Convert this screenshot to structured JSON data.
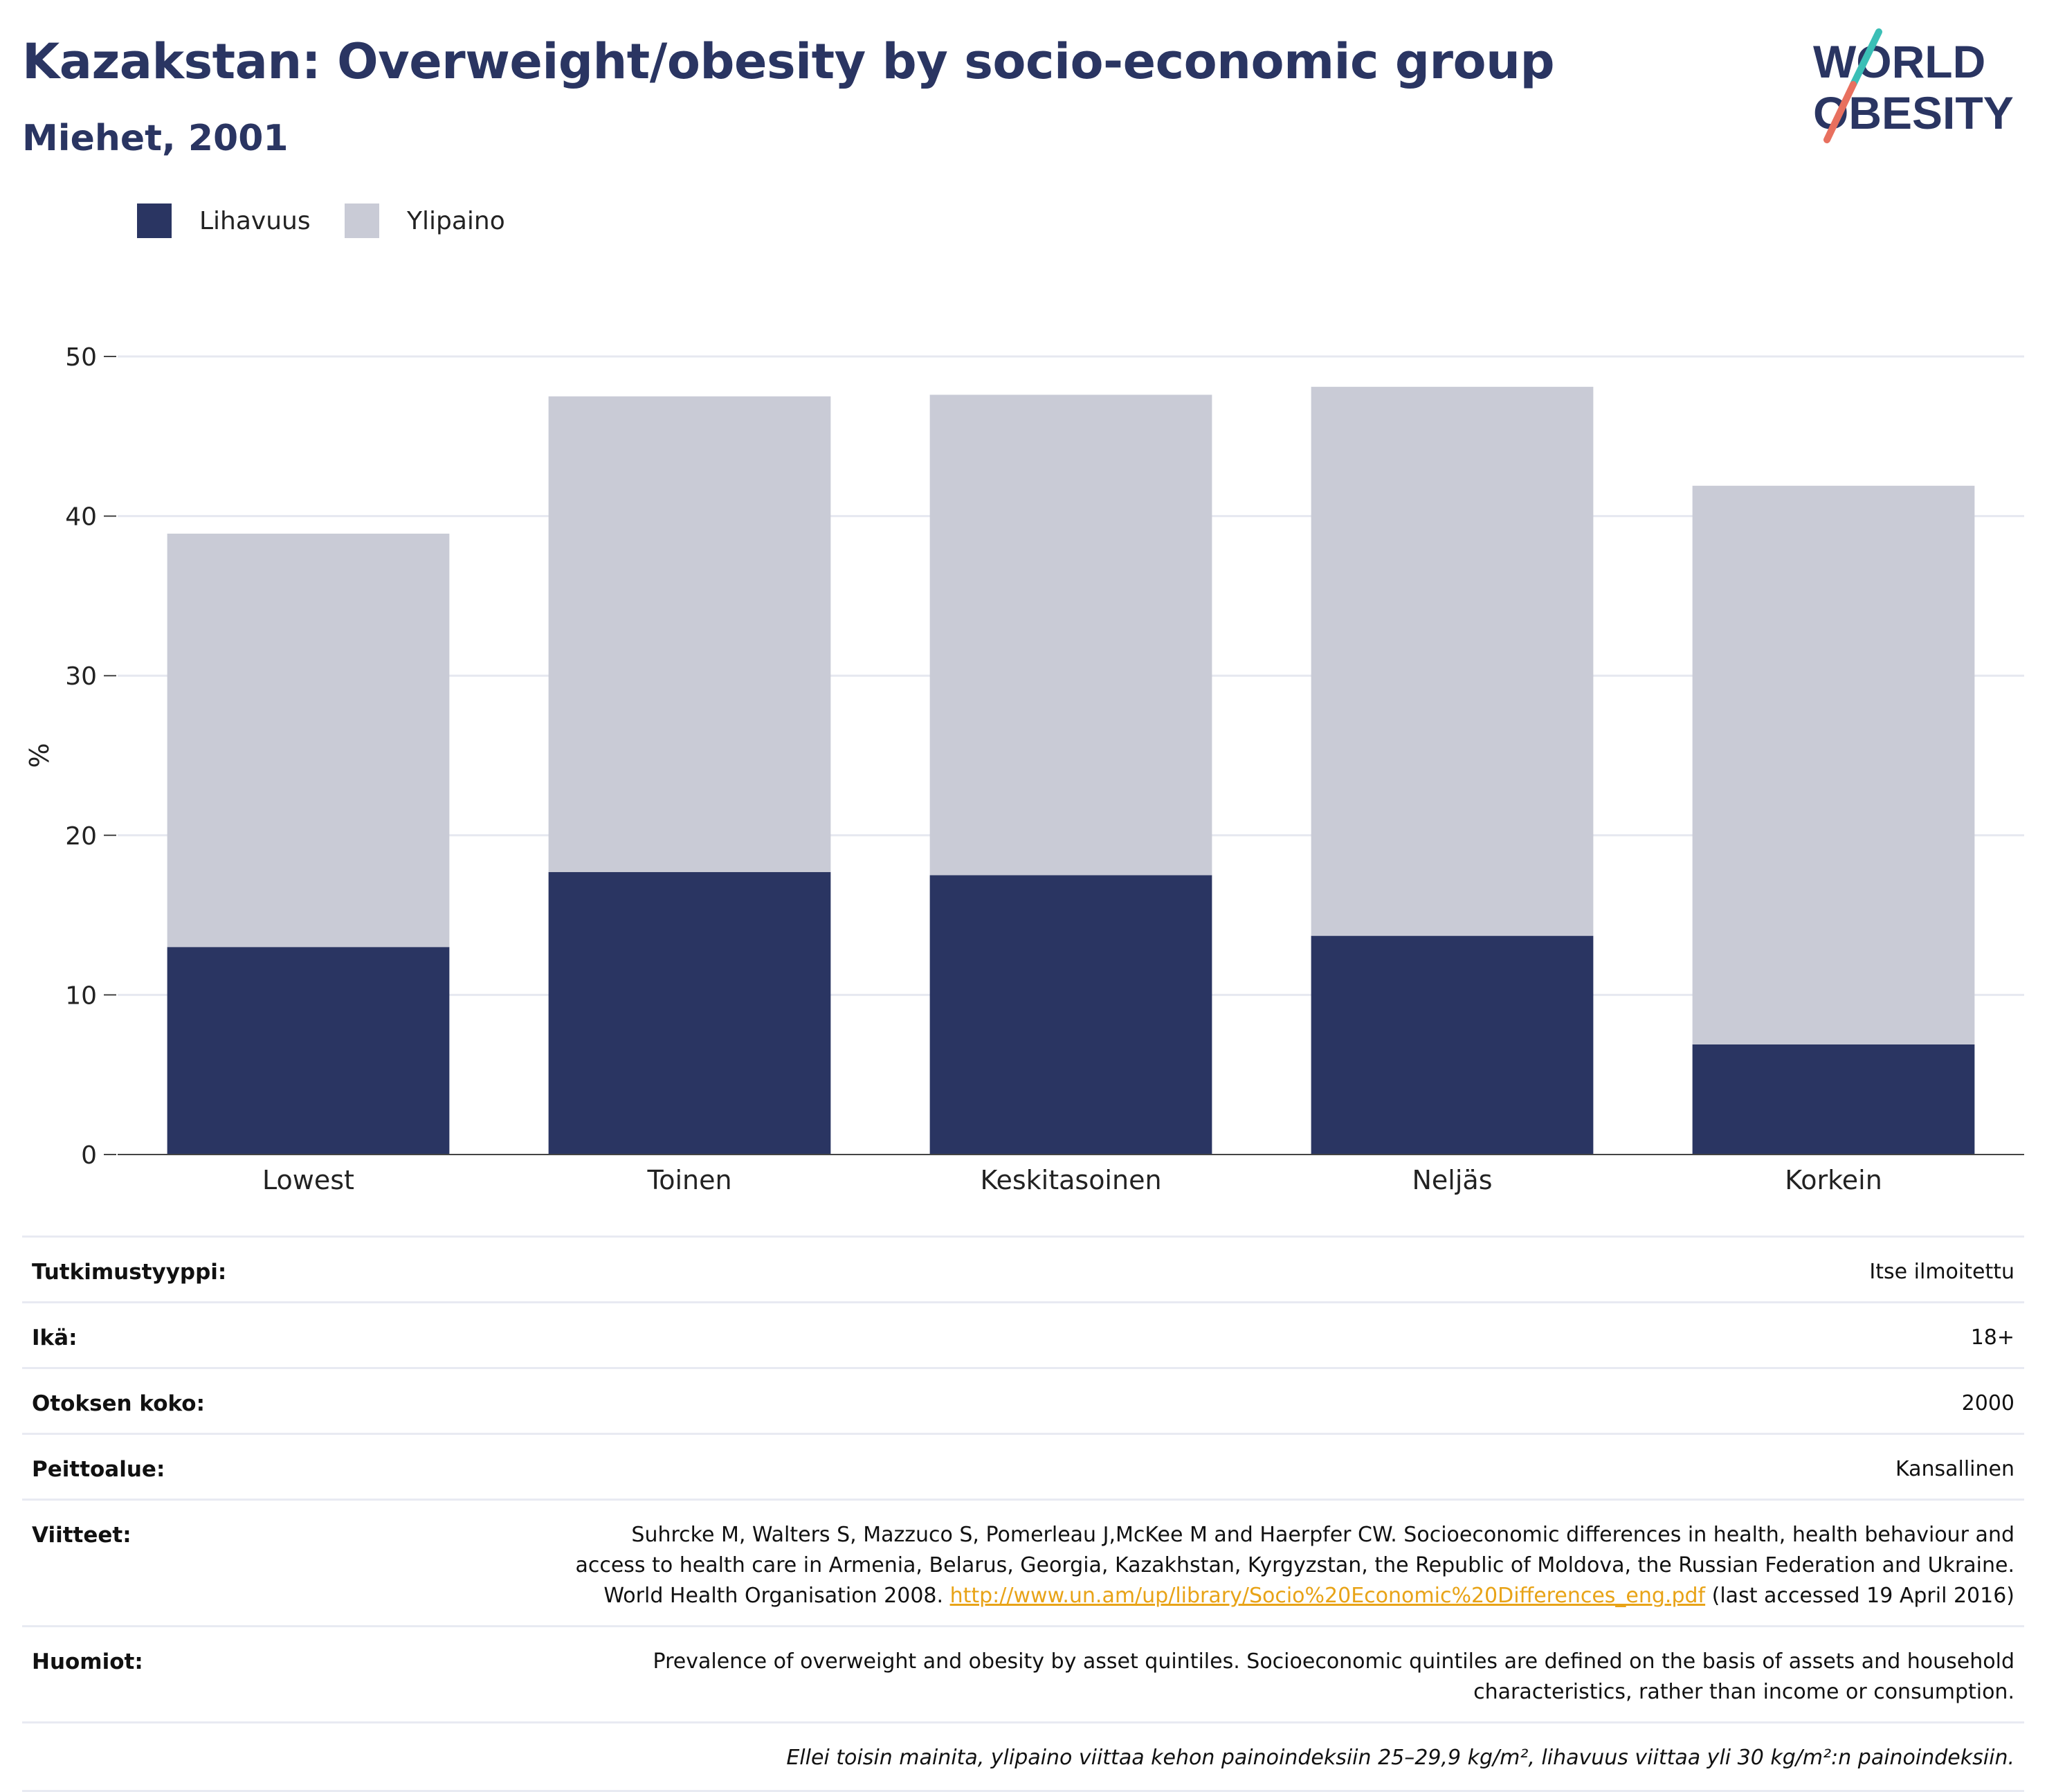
{
  "header": {
    "title": "Kazakstan: Overweight/obesity by socio-economic group",
    "subtitle": "Miehet, 2001"
  },
  "logo": {
    "line1": "WORLD",
    "line2": "OBESITY",
    "text_color": "#2a3562",
    "stripe_colors": [
      "#3bbfb6",
      "#e8705f"
    ]
  },
  "legend": [
    {
      "label": "Lihavuus",
      "color": "#2a3562"
    },
    {
      "label": "Ylipaino",
      "color": "#c9cbd6"
    }
  ],
  "chart_data": {
    "type": "bar",
    "stacked": true,
    "categories": [
      "Lowest",
      "Toinen",
      "Keskitasoinen",
      "Neljäs",
      "Korkein"
    ],
    "series": [
      {
        "name": "Lihavuus",
        "color": "#2a3562",
        "values": [
          13.0,
          17.7,
          17.5,
          13.7,
          6.9
        ]
      },
      {
        "name": "Ylipaino",
        "color": "#c9cbd6",
        "values": [
          25.9,
          29.8,
          30.1,
          34.4,
          35.0
        ]
      }
    ],
    "ylabel": "%",
    "ylim": [
      0,
      50
    ],
    "yticks": [
      0,
      10,
      20,
      30,
      40,
      50
    ],
    "grid": true
  },
  "meta": {
    "rows": [
      {
        "key": "Tutkimustyyppi:",
        "value": "Itse ilmoitettu"
      },
      {
        "key": "Ikä:",
        "value": "18+"
      },
      {
        "key": "Otoksen koko:",
        "value": "2000"
      },
      {
        "key": "Peittoalue:",
        "value": "Kansallinen"
      }
    ],
    "references": {
      "key": "Viitteet:",
      "text_before": "Suhrcke M, Walters S, Mazzuco S, Pomerleau J,McKee M and Haerpfer CW. Socioeconomic differences in health, health behaviour and access to health care in Armenia, Belarus, Georgia, Kazakhstan, Kyrgyzstan, the Republic of Moldova, the Russian Federation and Ukraine. World Health Organisation 2008. ",
      "link": "http://www.un.am/up/library/Socio%20Economic%20Differences_eng.pdf",
      "text_after": " (last accessed 19 April 2016)"
    },
    "notes": {
      "key": "Huomiot:",
      "value": "Prevalence of overweight and obesity by asset quintiles. Socioeconomic quintiles are defined on the basis of assets and household characteristics, rather than income or consumption."
    },
    "footnote": "Ellei toisin mainita, ylipaino viittaa kehon painoindeksiin 25–29,9 kg/m², lihavuus viittaa yli 30 kg/m²:n painoindeksiin."
  }
}
